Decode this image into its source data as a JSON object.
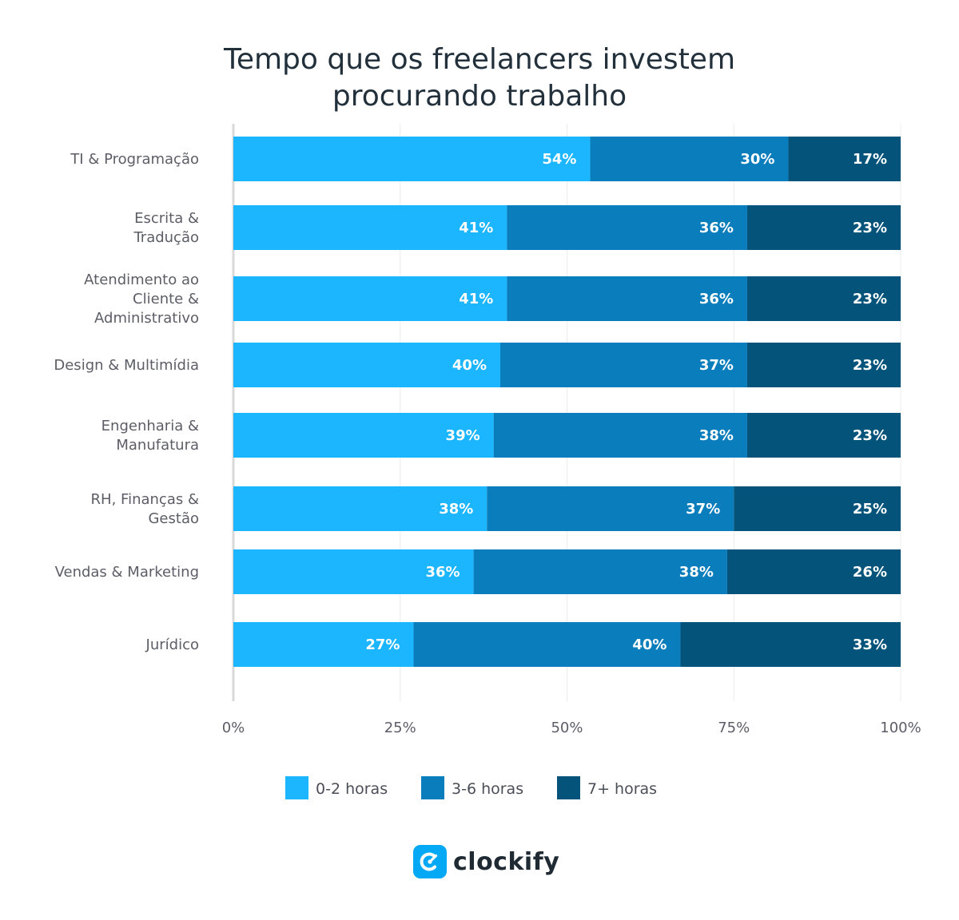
{
  "title_lines": [
    "Tempo que os freelancers investem",
    "procurando trabalho"
  ],
  "brand": {
    "name": "clockify",
    "color": "#03a9f4"
  },
  "chart_data": {
    "type": "bar",
    "orientation": "horizontal",
    "stacked": true,
    "title": "Tempo que os freelancers investem procurando trabalho",
    "categories": [
      [
        "TI & Programação"
      ],
      [
        "Escrita &",
        "Tradução"
      ],
      [
        "Atendimento ao",
        "Cliente &",
        "Administrativo"
      ],
      [
        "Design & Multimídia"
      ],
      [
        "Engenharia &",
        "Manufatura"
      ],
      [
        "RH, Finanças &",
        "Gestão"
      ],
      [
        "Vendas & Marketing"
      ],
      [
        "Jurídico"
      ]
    ],
    "series": [
      {
        "name": "0-2 horas",
        "color": "#1cb5ff",
        "values": [
          54,
          41,
          41,
          40,
          39,
          38,
          36,
          27
        ]
      },
      {
        "name": "3-6 horas",
        "color": "#0a7dbc",
        "values": [
          30,
          36,
          36,
          37,
          38,
          37,
          38,
          40
        ]
      },
      {
        "name": "7+ horas",
        "color": "#03537a",
        "values": [
          17,
          23,
          23,
          23,
          23,
          25,
          26,
          33
        ]
      }
    ],
    "xlim": [
      0,
      100
    ],
    "x_ticks": [
      "0%",
      "25%",
      "50%",
      "75%",
      "100%"
    ],
    "value_suffix": "%",
    "grid": true,
    "legend_position": "bottom"
  }
}
